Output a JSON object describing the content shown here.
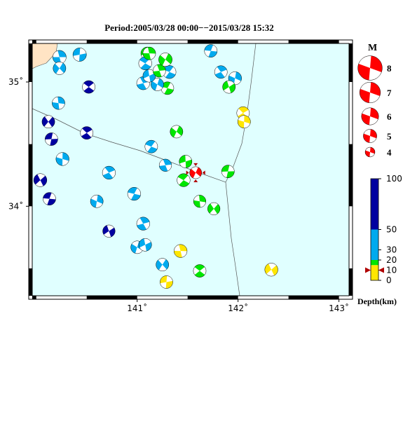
{
  "title": "Period:2005/03/28 00:00−−2015/03/28 15:32",
  "xlim": [
    139.96,
    143.1
  ],
  "ylim": [
    33.28,
    35.31
  ],
  "xticks": [
    {
      "value": 141,
      "label": "141˚"
    },
    {
      "value": 142,
      "label": "142˚"
    },
    {
      "value": 143,
      "label": "143˚"
    }
  ],
  "yticks": [
    {
      "value": 34,
      "label": "34˚"
    },
    {
      "value": 35,
      "label": "35˚"
    }
  ],
  "magnitude_legend": {
    "label": "M",
    "items": [
      8,
      7,
      6,
      5,
      4
    ]
  },
  "depth_scale": {
    "label": "Depth(km)",
    "ticks": [
      0,
      10,
      20,
      30,
      50,
      100
    ],
    "bands": [
      {
        "from": 0,
        "to": 15,
        "color": "#ffe600"
      },
      {
        "from": 15,
        "to": 20,
        "color": "#00e600"
      },
      {
        "from": 20,
        "to": 50,
        "color": "#00aaee"
      },
      {
        "from": 50,
        "to": 100,
        "color": "#0000a0"
      }
    ]
  },
  "main_event": {
    "lon": 141.58,
    "lat": 34.27,
    "depth": 10,
    "mag": 4.6,
    "color": "#ff0000"
  },
  "events": [
    {
      "lon": 140.23,
      "lat": 35.2,
      "depth": 35,
      "mag": 5.0
    },
    {
      "lon": 140.23,
      "lat": 35.11,
      "depth": 35,
      "mag": 4.8
    },
    {
      "lon": 140.43,
      "lat": 35.22,
      "depth": 35,
      "mag": 5.0
    },
    {
      "lon": 140.52,
      "lat": 34.96,
      "depth": 70,
      "mag": 4.8
    },
    {
      "lon": 140.22,
      "lat": 34.83,
      "depth": 35,
      "mag": 4.8
    },
    {
      "lon": 140.12,
      "lat": 34.68,
      "depth": 70,
      "mag": 4.8
    },
    {
      "lon": 140.15,
      "lat": 34.54,
      "depth": 70,
      "mag": 4.8
    },
    {
      "lon": 140.5,
      "lat": 34.59,
      "depth": 70,
      "mag": 4.8
    },
    {
      "lon": 140.26,
      "lat": 34.38,
      "depth": 35,
      "mag": 4.9
    },
    {
      "lon": 140.04,
      "lat": 34.21,
      "depth": 70,
      "mag": 4.9
    },
    {
      "lon": 140.13,
      "lat": 34.06,
      "depth": 70,
      "mag": 4.8
    },
    {
      "lon": 140.72,
      "lat": 34.27,
      "depth": 35,
      "mag": 4.9
    },
    {
      "lon": 140.6,
      "lat": 34.04,
      "depth": 35,
      "mag": 4.8
    },
    {
      "lon": 140.72,
      "lat": 33.8,
      "depth": 70,
      "mag": 4.7
    },
    {
      "lon": 140.97,
      "lat": 34.1,
      "depth": 35,
      "mag": 4.9
    },
    {
      "lon": 141.06,
      "lat": 33.86,
      "depth": 35,
      "mag": 4.9
    },
    {
      "lon": 141.0,
      "lat": 33.67,
      "depth": 35,
      "mag": 4.8
    },
    {
      "lon": 141.08,
      "lat": 33.69,
      "depth": 35,
      "mag": 4.8
    },
    {
      "lon": 141.14,
      "lat": 34.48,
      "depth": 35,
      "mag": 4.8
    },
    {
      "lon": 141.28,
      "lat": 34.33,
      "depth": 35,
      "mag": 4.7
    },
    {
      "lon": 141.39,
      "lat": 34.6,
      "depth": 17,
      "mag": 4.8
    },
    {
      "lon": 141.48,
      "lat": 34.36,
      "depth": 17,
      "mag": 4.8
    },
    {
      "lon": 141.46,
      "lat": 34.21,
      "depth": 17,
      "mag": 4.9
    },
    {
      "lon": 141.43,
      "lat": 33.64,
      "depth": 8,
      "mag": 4.9
    },
    {
      "lon": 141.25,
      "lat": 33.53,
      "depth": 35,
      "mag": 4.8
    },
    {
      "lon": 141.29,
      "lat": 33.39,
      "depth": 8,
      "mag": 4.8
    },
    {
      "lon": 141.62,
      "lat": 33.48,
      "depth": 17,
      "mag": 4.8
    },
    {
      "lon": 141.62,
      "lat": 34.04,
      "depth": 17,
      "mag": 4.7
    },
    {
      "lon": 141.76,
      "lat": 33.98,
      "depth": 17,
      "mag": 4.7
    },
    {
      "lon": 141.9,
      "lat": 34.28,
      "depth": 17,
      "mag": 4.8
    },
    {
      "lon": 142.05,
      "lat": 34.75,
      "depth": 8,
      "mag": 4.8
    },
    {
      "lon": 142.06,
      "lat": 34.68,
      "depth": 8,
      "mag": 4.8
    },
    {
      "lon": 142.33,
      "lat": 33.49,
      "depth": 8,
      "mag": 4.9
    },
    {
      "lon": 141.73,
      "lat": 35.25,
      "depth": 35,
      "mag": 4.8
    },
    {
      "lon": 141.83,
      "lat": 35.08,
      "depth": 35,
      "mag": 4.8
    },
    {
      "lon": 141.97,
      "lat": 35.03,
      "depth": 35,
      "mag": 4.9
    },
    {
      "lon": 141.91,
      "lat": 34.96,
      "depth": 17,
      "mag": 4.8
    },
    {
      "lon": 141.3,
      "lat": 34.95,
      "depth": 17,
      "mag": 4.8
    },
    {
      "lon": 141.06,
      "lat": 34.99,
      "depth": 35,
      "mag": 4.9
    },
    {
      "lon": 141.2,
      "lat": 34.98,
      "depth": 35,
      "mag": 4.8
    },
    {
      "lon": 141.12,
      "lat": 35.05,
      "depth": 35,
      "mag": 4.8
    },
    {
      "lon": 141.32,
      "lat": 35.08,
      "depth": 35,
      "mag": 4.9
    },
    {
      "lon": 141.22,
      "lat": 35.09,
      "depth": 17,
      "mag": 4.8
    },
    {
      "lon": 141.28,
      "lat": 35.18,
      "depth": 17,
      "mag": 5.0
    },
    {
      "lon": 141.1,
      "lat": 35.23,
      "depth": 17,
      "mag": 4.8
    },
    {
      "lon": 141.08,
      "lat": 35.15,
      "depth": 35,
      "mag": 4.9
    },
    {
      "lon": 141.12,
      "lat": 35.23,
      "depth": 17,
      "mag": 4.8
    }
  ]
}
